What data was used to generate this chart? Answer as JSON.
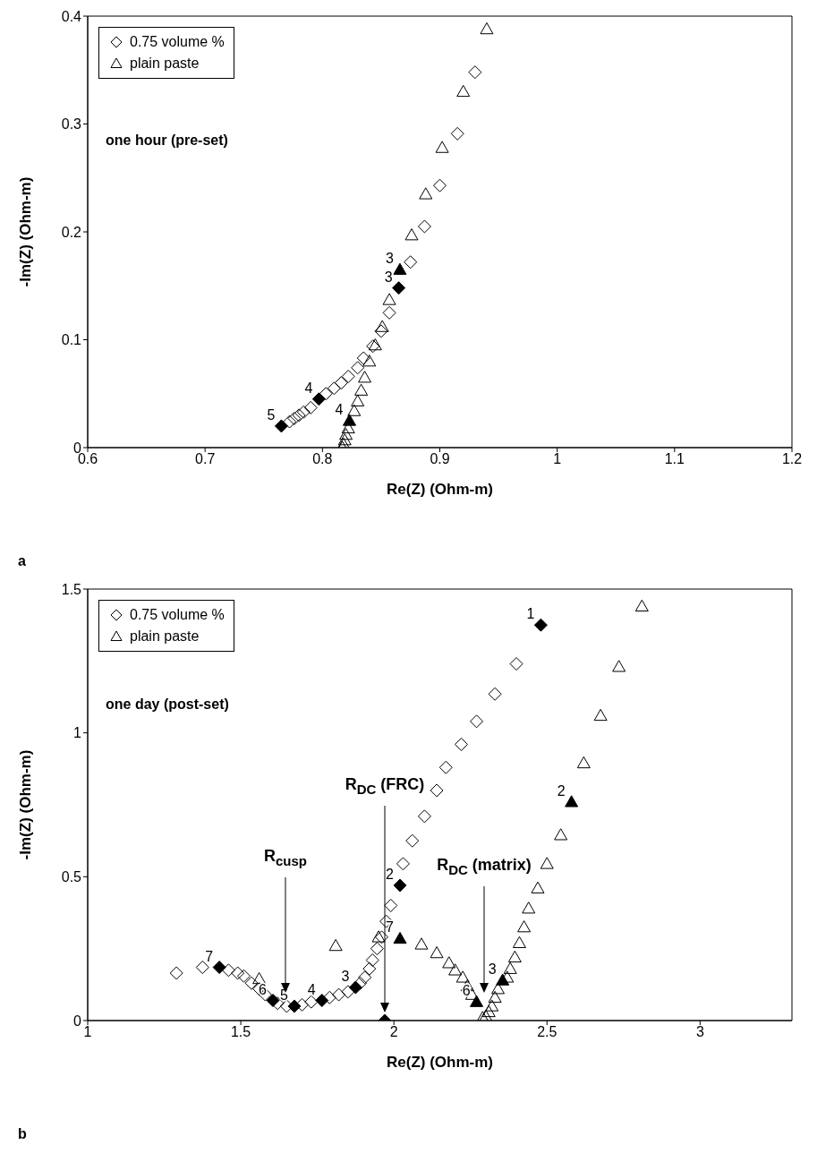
{
  "chart_data": [
    {
      "type": "scatter",
      "xlabel": "Re(Z) (Ohm-m)",
      "ylabel": "-Im(Z) (Ohm-m)",
      "xlim": [
        0.6,
        1.2
      ],
      "xticks": [
        0.6,
        0.7,
        0.8,
        0.9,
        1,
        1.1,
        1.2
      ],
      "ylim": [
        0,
        0.4
      ],
      "yticks": [
        0,
        0.1,
        0.2,
        0.3,
        0.4
      ],
      "legend": "top left",
      "annotations": [
        "one hour (pre-set)",
        "a",
        {
          "text": "3",
          "x": 0.865,
          "y": 0.148
        },
        {
          "text": "4",
          "x": 0.797,
          "y": 0.045
        },
        {
          "text": "5",
          "x": 0.765,
          "y": 0.02
        },
        {
          "text": "3",
          "x": 0.866,
          "y": 0.165
        },
        {
          "text": "4",
          "x": 0.823,
          "y": 0.025
        }
      ],
      "series": [
        {
          "name": "0.75 volume %",
          "color": "#000000",
          "marker": "diamond",
          "x": [
            0.93,
            0.915,
            0.9,
            0.887,
            0.875,
            0.857,
            0.85,
            0.843,
            0.835,
            0.83,
            0.822,
            0.816,
            0.81,
            0.803,
            0.79,
            0.784,
            0.78,
            0.776,
            0.772
          ],
          "values": [
            0.348,
            0.291,
            0.243,
            0.205,
            0.172,
            0.125,
            0.108,
            0.094,
            0.083,
            0.074,
            0.066,
            0.06,
            0.055,
            0.05,
            0.037,
            0.033,
            0.03,
            0.027,
            0.024
          ]
        },
        {
          "name": "plain paste",
          "color": "#000000",
          "marker": "triangle",
          "x": [
            0.94,
            0.92,
            0.902,
            0.888,
            0.876,
            0.857,
            0.851,
            0.845,
            0.84,
            0.836,
            0.833,
            0.83,
            0.827,
            0.822,
            0.82,
            0.819,
            0.818,
            0.817
          ],
          "values": [
            0.388,
            0.33,
            0.278,
            0.235,
            0.197,
            0.137,
            0.112,
            0.095,
            0.08,
            0.065,
            0.053,
            0.043,
            0.034,
            0.018,
            0.012,
            0.007,
            0.003,
            0
          ]
        },
        {
          "color": "#000000",
          "marker": "diamond",
          "x": [
            0.865,
            0.797,
            0.765
          ],
          "values": [
            0.148,
            0.045,
            0.02
          ]
        },
        {
          "color": "#000000",
          "marker": "triangle",
          "x": [
            0.866,
            0.823
          ],
          "values": [
            0.165,
            0.025
          ]
        }
      ]
    },
    {
      "type": "scatter",
      "xlabel": "Re(Z) (Ohm-m)",
      "ylabel": "-Im(Z) (Ohm-m)",
      "xlim": [
        1,
        3.3
      ],
      "xticks": [
        1,
        1.5,
        2,
        2.5,
        3
      ],
      "ylim": [
        0,
        1.5
      ],
      "yticks": [
        0,
        0.5,
        1,
        1.5
      ],
      "legend": "top left",
      "annotations": [
        "one day (post-set)",
        "b",
        "R$_{cusp}$",
        "R$_{DC}$ (FRC)",
        "R$_{DC}$ (matrix)",
        {
          "text": "1",
          "x": 2.48,
          "y": 1.375
        },
        {
          "text": "2",
          "x": 2.02,
          "y": 0.47
        },
        {
          "text": "3",
          "x": 1.875,
          "y": 0.115
        },
        {
          "text": "4",
          "x": 1.765,
          "y": 0.07
        },
        {
          "text": "5",
          "x": 1.675,
          "y": 0.05
        },
        {
          "text": "6",
          "x": 1.605,
          "y": 0.07
        },
        {
          "text": "7",
          "x": 1.43,
          "y": 0.185
        },
        {
          "text": "2",
          "x": 2.58,
          "y": 0.76
        },
        {
          "text": "3",
          "x": 2.355,
          "y": 0.14
        },
        {
          "text": "6",
          "x": 2.27,
          "y": 0.065
        },
        {
          "text": "7",
          "x": 2.02,
          "y": 0.285
        }
      ],
      "series": [
        {
          "name": "0.75 volume %",
          "color": "#000000",
          "marker": "diamond",
          "x": [
            2.4,
            2.33,
            2.27,
            2.22,
            2.17,
            2.14,
            2.1,
            2.06,
            2.03,
            1.99,
            1.975,
            1.96,
            1.945,
            1.93,
            1.92,
            1.905,
            1.89,
            1.85,
            1.82,
            1.79,
            1.73,
            1.7,
            1.65,
            1.62,
            1.58,
            1.56,
            1.535,
            1.51,
            1.49,
            1.46,
            1.375,
            1.29
          ],
          "values": [
            1.24,
            1.135,
            1.04,
            0.96,
            0.88,
            0.8,
            0.71,
            0.625,
            0.545,
            0.4,
            0.345,
            0.29,
            0.25,
            0.21,
            0.18,
            0.15,
            0.13,
            0.1,
            0.09,
            0.08,
            0.065,
            0.055,
            0.05,
            0.06,
            0.09,
            0.11,
            0.13,
            0.155,
            0.165,
            0.175,
            0.185,
            0.165
          ]
        },
        {
          "name": "plain paste",
          "color": "#000000",
          "marker": "triangle",
          "x": [
            2.81,
            2.735,
            2.675,
            2.62,
            2.545,
            2.5,
            2.47,
            2.44,
            2.425,
            2.41,
            2.395,
            2.38,
            2.37,
            2.34,
            2.33,
            2.32,
            2.31,
            2.3,
            2.29,
            2.255,
            2.24,
            2.225,
            2.2,
            2.18,
            2.14,
            2.09,
            1.95,
            1.81,
            1.56
          ],
          "values": [
            1.44,
            1.23,
            1.06,
            0.895,
            0.645,
            0.545,
            0.46,
            0.39,
            0.325,
            0.27,
            0.22,
            0.18,
            0.15,
            0.11,
            0.08,
            0.05,
            0.03,
            0.015,
            0.01,
            0.09,
            0.12,
            0.15,
            0.175,
            0.2,
            0.235,
            0.265,
            0.29,
            0.26,
            0.145
          ]
        },
        {
          "color": "#000000",
          "marker": "diamond",
          "x": [
            2.48,
            2.02,
            1.875,
            1.765,
            1.675,
            1.605,
            1.43,
            1.97
          ],
          "values": [
            1.375,
            0.47,
            0.115,
            0.07,
            0.05,
            0.07,
            0.185,
            0
          ]
        },
        {
          "color": "#000000",
          "marker": "triangle",
          "x": [
            2.58,
            2.355,
            2.27,
            2.02
          ],
          "values": [
            0.76,
            0.14,
            0.065,
            0.285
          ]
        }
      ]
    }
  ]
}
